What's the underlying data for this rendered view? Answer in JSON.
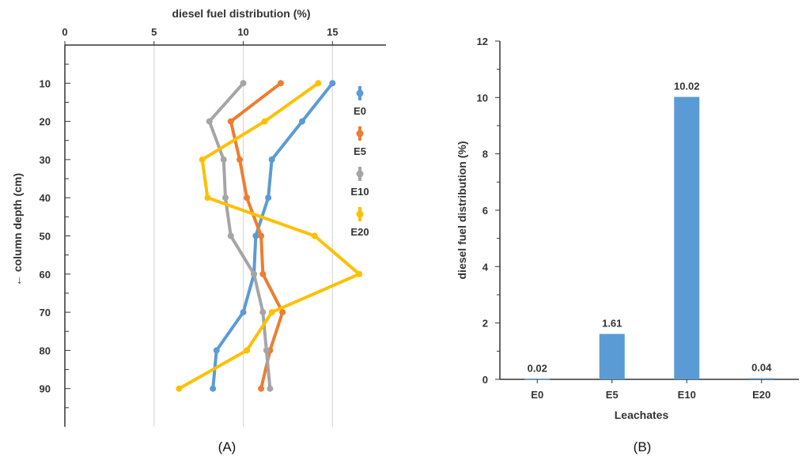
{
  "chart_data": [
    {
      "type": "line",
      "panel_label": "(A)",
      "title": "",
      "xlabel": "diesel fuel distribution (%)",
      "ylabel": "← column depth (cm)",
      "x_axis_position": "top",
      "y_inverted": true,
      "xlim": [
        0,
        18
      ],
      "ylim": [
        0,
        100
      ],
      "x_ticks": [
        0,
        5,
        10,
        15
      ],
      "x_tick_labels": [
        "0",
        "5",
        "10",
        "15"
      ],
      "y_ticks": [
        10,
        20,
        30,
        40,
        50,
        60,
        70,
        80,
        90
      ],
      "y_tick_labels": [
        "10",
        "20",
        "30",
        "40",
        "50",
        "60",
        "70",
        "80",
        "90"
      ],
      "grid": "vertical",
      "legend_position": "right",
      "series": [
        {
          "name": "E0",
          "color": "#5b9bd5",
          "x": [
            15.0,
            13.3,
            11.6,
            11.4,
            10.7,
            10.6,
            10.0,
            8.5,
            8.3
          ],
          "y": [
            10,
            20,
            30,
            40,
            50,
            60,
            70,
            80,
            90
          ]
        },
        {
          "name": "E5",
          "color": "#ed7d31",
          "x": [
            12.1,
            9.3,
            9.8,
            10.2,
            11.0,
            11.1,
            12.2,
            11.5,
            11.0
          ],
          "y": [
            10,
            20,
            30,
            40,
            50,
            60,
            70,
            80,
            90
          ]
        },
        {
          "name": "E10",
          "color": "#a5a5a5",
          "x": [
            10.0,
            8.1,
            8.9,
            9.0,
            9.3,
            10.6,
            11.1,
            11.3,
            11.5
          ],
          "y": [
            10,
            20,
            30,
            40,
            50,
            60,
            70,
            80,
            90
          ]
        },
        {
          "name": "E20",
          "color": "#ffc000",
          "x": [
            14.2,
            11.2,
            7.7,
            8.0,
            14.0,
            16.5,
            11.6,
            10.2,
            6.4
          ],
          "y": [
            10,
            20,
            30,
            40,
            50,
            60,
            70,
            80,
            90
          ]
        }
      ]
    },
    {
      "type": "bar",
      "panel_label": "(B)",
      "title": "",
      "xlabel": "Leachates",
      "ylabel": "diesel fuel distribution (%)",
      "categories": [
        "E0",
        "E5",
        "E10",
        "E20"
      ],
      "values": [
        0.02,
        1.61,
        10.02,
        0.04
      ],
      "data_labels": [
        "0.02",
        "1.61",
        "10.02",
        "0.04"
      ],
      "ylim": [
        0,
        12
      ],
      "y_ticks": [
        0,
        2,
        4,
        6,
        8,
        10,
        12
      ],
      "y_tick_labels": [
        "0",
        "2",
        "4",
        "6",
        "8",
        "10",
        "12"
      ],
      "grid": false,
      "bar_color": "#5b9bd5"
    }
  ]
}
